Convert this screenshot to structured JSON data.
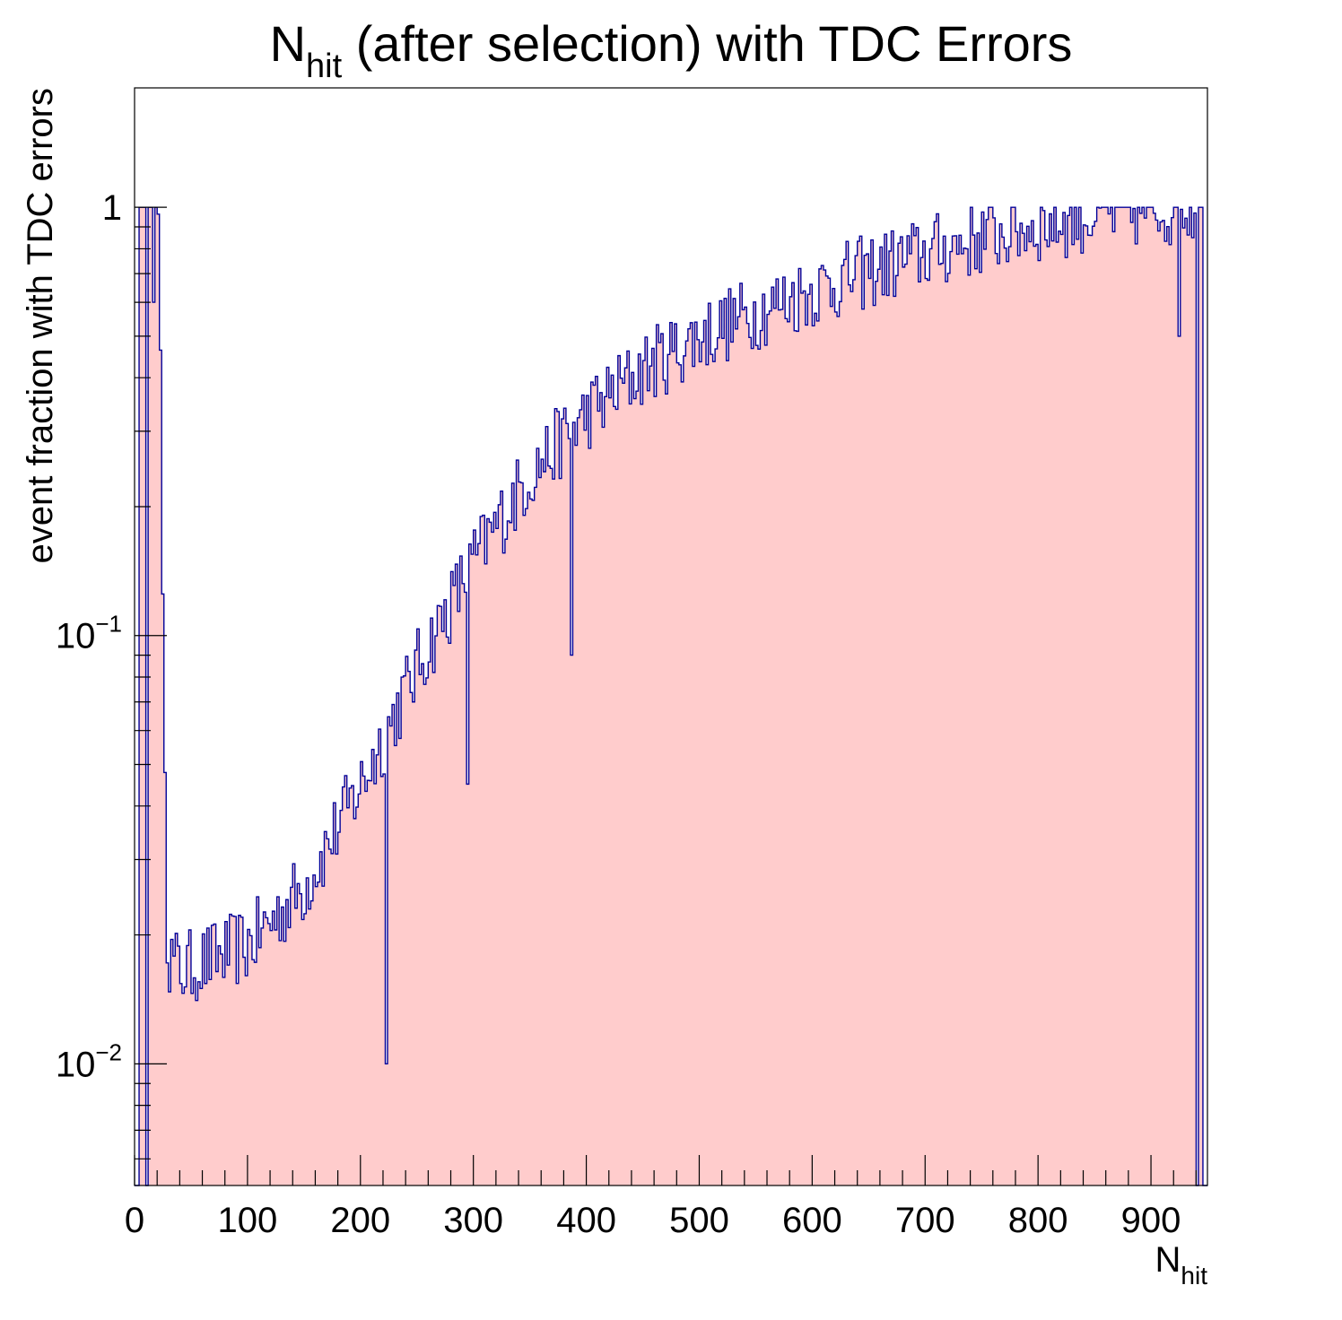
{
  "chart_data": {
    "type": "histogram",
    "title": {
      "main": "N",
      "subscript": "hit",
      "rest": " (after selection) with TDC Errors"
    },
    "xlabel": {
      "main": "N",
      "subscript": "hit"
    },
    "ylabel": "event fraction with TDC errors",
    "x_range": [
      0,
      950
    ],
    "y_range": [
      0.0052,
      1.9
    ],
    "y_scale": "log",
    "bin_width": 2,
    "x_ticks": [
      "0",
      "100",
      "200",
      "300",
      "400",
      "500",
      "600",
      "700",
      "800",
      "900"
    ],
    "y_ticks": [
      {
        "value": 1,
        "base": "1",
        "exp": ""
      },
      {
        "value": 0.1,
        "base": "10",
        "exp": "−1"
      },
      {
        "value": 0.01,
        "base": "10",
        "exp": "−2"
      }
    ],
    "fill_color": "#ffcccc",
    "line_color": "#000099",
    "curve_knots": [
      [
        20,
        0.9
      ],
      [
        22,
        0.45
      ],
      [
        24,
        0.12
      ],
      [
        26,
        0.05
      ],
      [
        28,
        0.018
      ],
      [
        40,
        0.0165
      ],
      [
        100,
        0.019
      ],
      [
        150,
        0.026
      ],
      [
        200,
        0.045
      ],
      [
        250,
        0.085
      ],
      [
        300,
        0.15
      ],
      [
        350,
        0.24
      ],
      [
        400,
        0.33
      ],
      [
        450,
        0.42
      ],
      [
        500,
        0.5
      ],
      [
        550,
        0.57
      ],
      [
        600,
        0.64
      ],
      [
        650,
        0.71
      ],
      [
        700,
        0.78
      ],
      [
        750,
        0.85
      ],
      [
        800,
        0.91
      ],
      [
        850,
        0.96
      ],
      [
        900,
        0.99
      ],
      [
        940,
        1.0
      ]
    ],
    "spikes": [
      [
        222,
        0.01
      ],
      [
        294,
        0.045
      ],
      [
        386,
        0.09
      ],
      [
        924,
        0.5
      ]
    ]
  }
}
